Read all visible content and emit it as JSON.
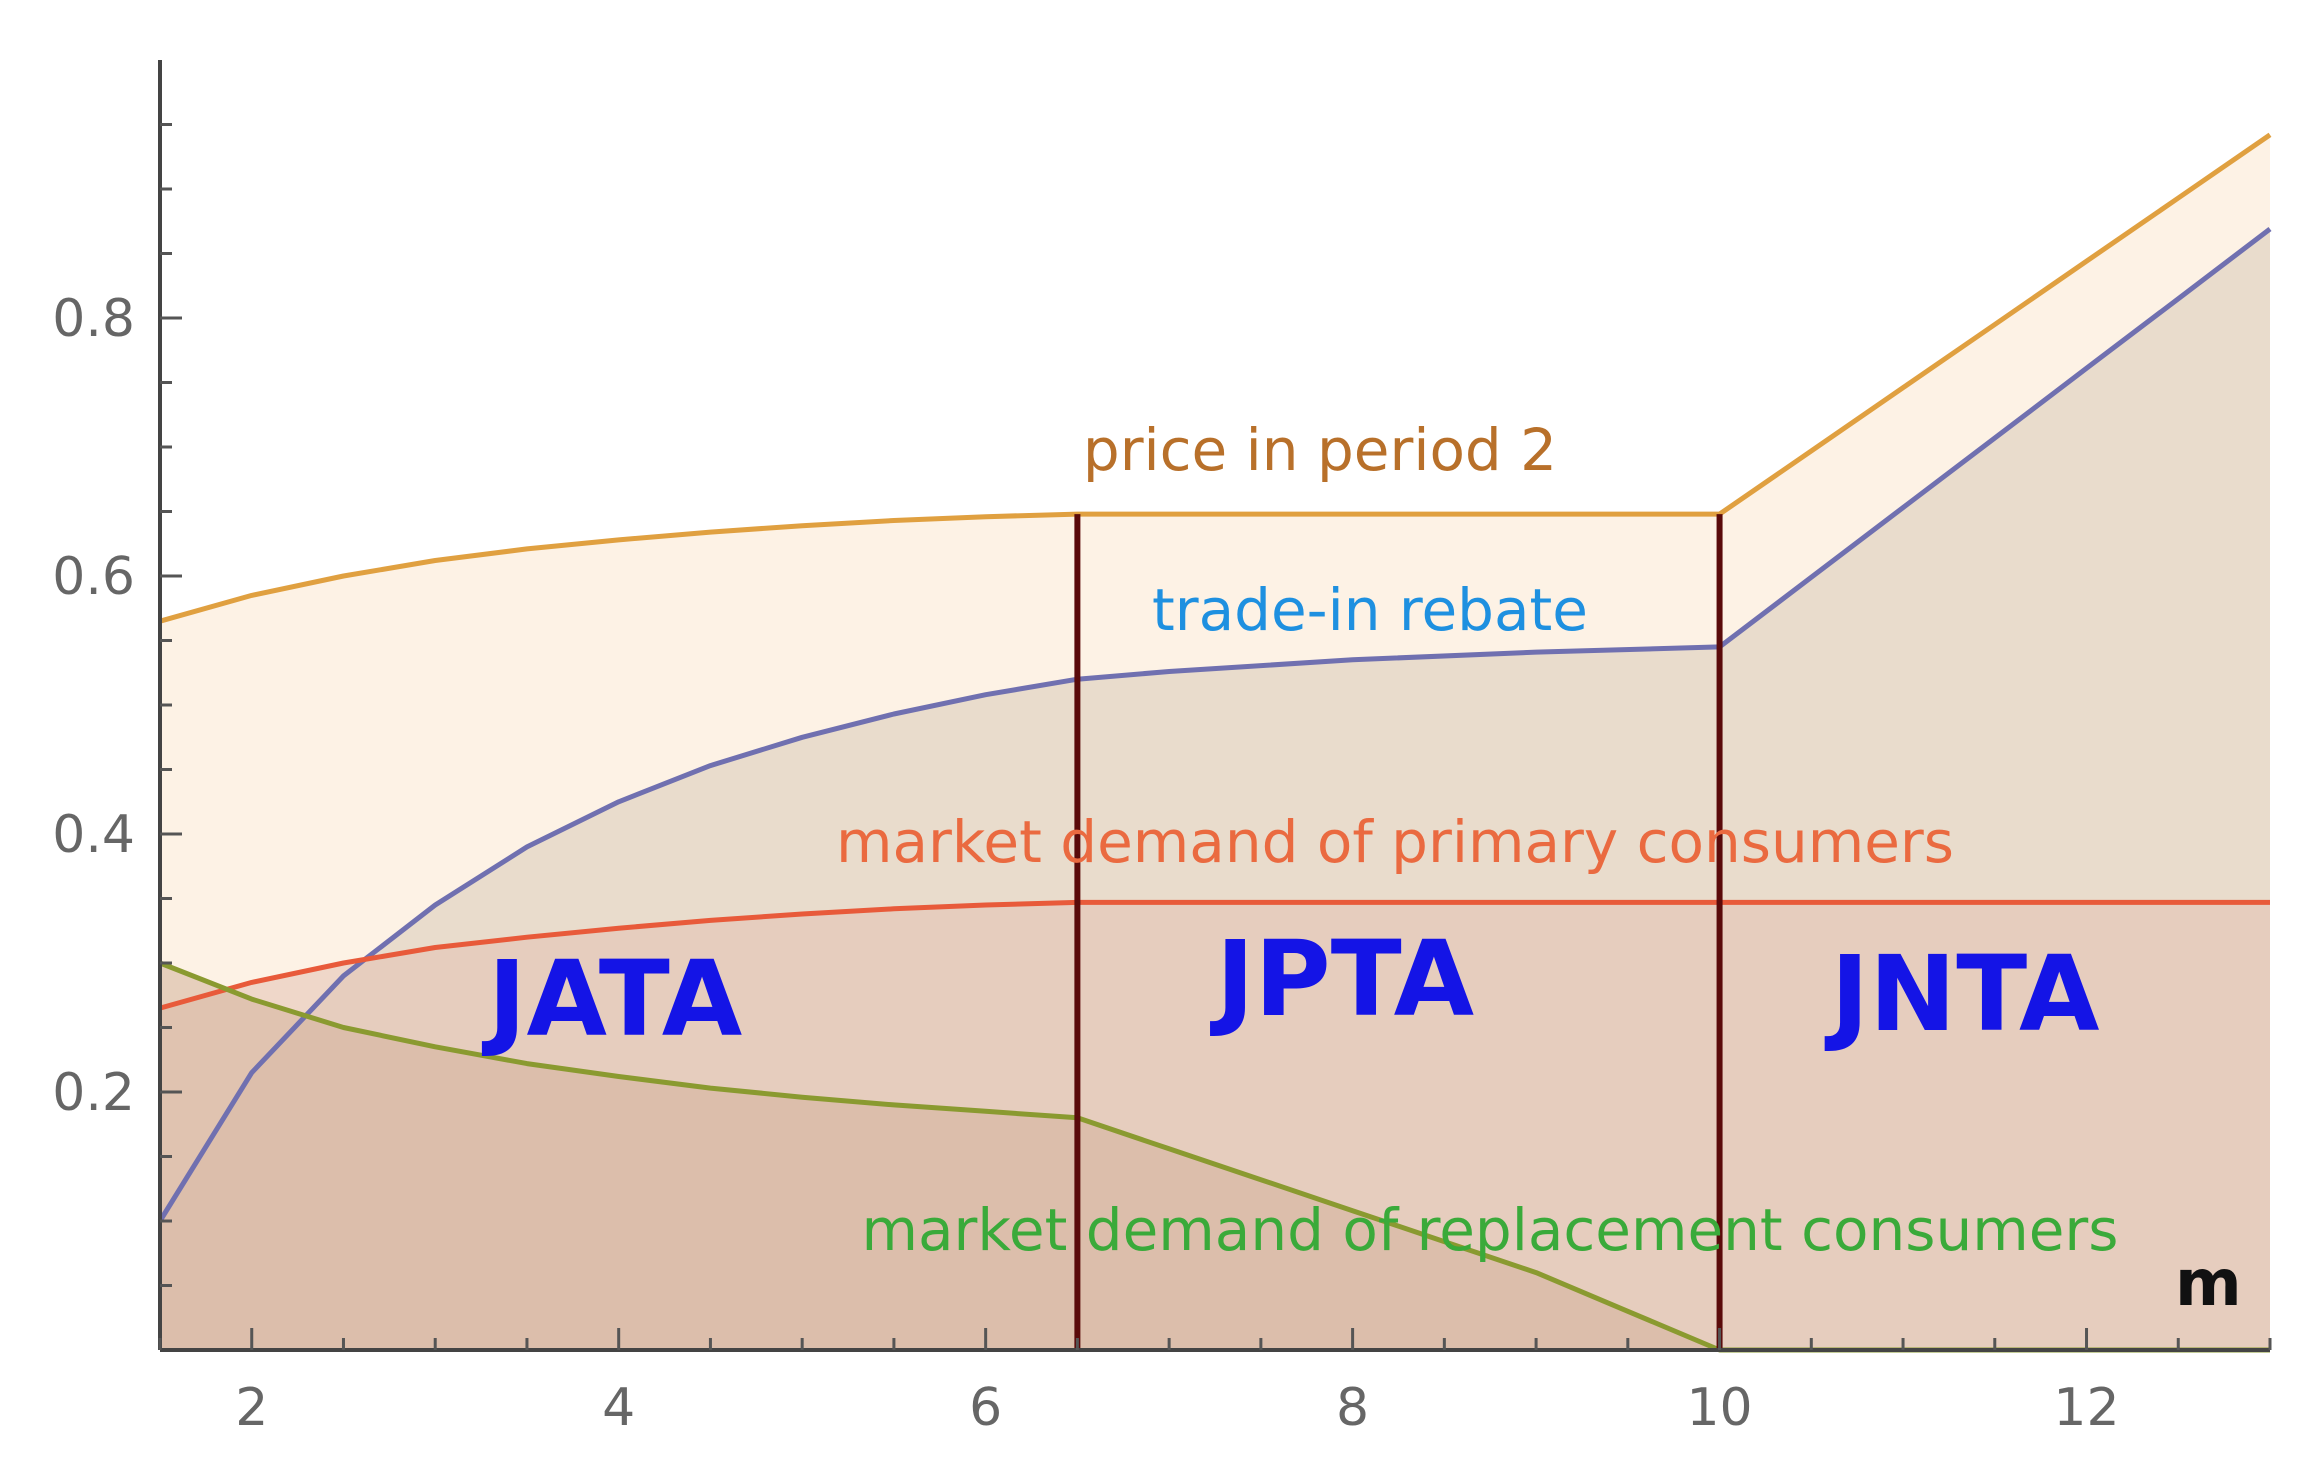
{
  "chart_data": {
    "type": "area",
    "xlabel": "m",
    "ylabel": "",
    "xlim": [
      1.5,
      13.0
    ],
    "ylim": [
      0.0,
      1.0
    ],
    "x_ticks": [
      2,
      4,
      6,
      8,
      10,
      12
    ],
    "x_tick_labels": [
      "2",
      "4",
      "6",
      "8",
      "10",
      "12"
    ],
    "y_ticks": [
      0.2,
      0.4,
      0.6,
      0.8
    ],
    "y_tick_labels": [
      "0.2",
      "0.4",
      "0.6",
      "0.8"
    ],
    "boundaries": [
      6.5,
      10.0
    ],
    "series": [
      {
        "name": "price in period 2",
        "color": "#e0a040",
        "fill": "#fbe8cf",
        "x": [
          1.5,
          2,
          2.5,
          3,
          3.5,
          4,
          4.5,
          5,
          5.5,
          6,
          6.5,
          7,
          8,
          9,
          10,
          10.5,
          11,
          11.5,
          12,
          12.5,
          13
        ],
        "y": [
          0.565,
          0.585,
          0.6,
          0.612,
          0.621,
          0.628,
          0.634,
          0.639,
          0.643,
          0.646,
          0.648,
          0.648,
          0.648,
          0.648,
          0.648,
          0.697,
          0.746,
          0.795,
          0.844,
          0.893,
          0.942
        ]
      },
      {
        "name": "trade-in rebate",
        "color": "#7070b0",
        "fill": "#d8cbb8",
        "x": [
          1.5,
          2,
          2.5,
          3,
          3.5,
          4,
          4.5,
          5,
          5.5,
          6,
          6.5,
          7,
          8,
          9,
          10,
          10.5,
          11,
          11.5,
          12,
          12.5,
          13
        ],
        "y": [
          0.1,
          0.215,
          0.29,
          0.345,
          0.39,
          0.425,
          0.453,
          0.475,
          0.493,
          0.508,
          0.52,
          0.526,
          0.535,
          0.541,
          0.545,
          0.599,
          0.653,
          0.707,
          0.761,
          0.815,
          0.869
        ]
      },
      {
        "name": "market demand of primary consumers",
        "color": "#e85a3a",
        "fill": "#e3c1b2",
        "x": [
          1.5,
          2,
          2.5,
          3,
          3.5,
          4,
          4.5,
          5,
          5.5,
          6,
          6.5,
          7,
          8,
          9,
          10,
          11,
          12,
          13
        ],
        "y": [
          0.265,
          0.285,
          0.3,
          0.312,
          0.32,
          0.327,
          0.333,
          0.338,
          0.342,
          0.345,
          0.347,
          0.347,
          0.347,
          0.347,
          0.347,
          0.347,
          0.347,
          0.347
        ]
      },
      {
        "name": "market demand of replacement consumers",
        "color": "#8a9a30",
        "fill": "#d4b39b",
        "x": [
          1.5,
          2,
          2.5,
          3,
          3.5,
          4,
          4.5,
          5,
          5.5,
          6,
          6.5,
          7,
          7.5,
          8,
          8.5,
          9,
          9.5,
          10,
          11,
          12,
          13
        ],
        "y": [
          0.3,
          0.272,
          0.25,
          0.235,
          0.222,
          0.212,
          0.203,
          0.196,
          0.19,
          0.185,
          0.18,
          0.156,
          0.132,
          0.108,
          0.084,
          0.06,
          0.03,
          0.0,
          0.0,
          0.0,
          0.0
        ]
      }
    ],
    "curve_labels": [
      {
        "text": "price in period 2",
        "color": "#b8702a"
      },
      {
        "text": "trade-in rebate",
        "color": "#1e90e0"
      },
      {
        "text": "market demand of primary consumers",
        "color": "#ea6a40"
      },
      {
        "text": "market demand of replacement consumers",
        "color": "#3aaa3a"
      }
    ],
    "region_labels": [
      "JATA",
      "JPTA",
      "JNTA"
    ]
  }
}
